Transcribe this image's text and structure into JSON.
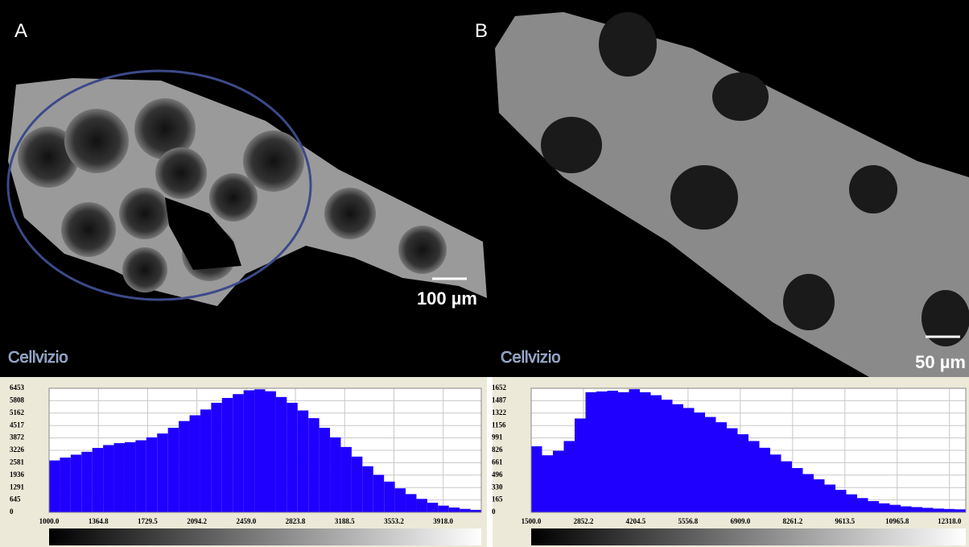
{
  "panels": [
    {
      "label": "A",
      "scale_bar": "100 µm",
      "logo": "Cellvizio"
    },
    {
      "label": "B",
      "scale_bar": "50 µm",
      "logo": "Cellvizio"
    }
  ],
  "chart_data": [
    {
      "type": "histogram",
      "color": "#1f00ff",
      "grid": true,
      "bins": [
        1000,
        1080,
        1160,
        1240,
        1320,
        1400,
        1480,
        1560,
        1640,
        1720,
        1800,
        1880,
        1960,
        2040,
        2120,
        2200,
        2280,
        2360,
        2440,
        2520,
        2600,
        2680,
        2760,
        2840,
        2920,
        3000,
        3080,
        3160,
        3240,
        3320,
        3400,
        3480,
        3560,
        3640,
        3720,
        3800,
        3880,
        3960,
        4040,
        4120,
        4200
      ],
      "values": [
        2700,
        2850,
        3000,
        3150,
        3350,
        3500,
        3600,
        3650,
        3750,
        3900,
        4100,
        4400,
        4750,
        5050,
        5350,
        5700,
        5950,
        6150,
        6350,
        6400,
        6300,
        6000,
        5700,
        5300,
        4900,
        4400,
        3900,
        3400,
        2900,
        2400,
        1950,
        1600,
        1250,
        950,
        700,
        500,
        350,
        250,
        180,
        130
      ],
      "xlim": [
        1000,
        4200
      ],
      "ylim": [
        0,
        6453
      ],
      "xticks": [
        {
          "value": 1000,
          "label": "1000.0"
        },
        {
          "value": 1364.8,
          "label": "1364.8"
        },
        {
          "value": 1729.5,
          "label": "1729.5"
        },
        {
          "value": 2094.2,
          "label": "2094.2"
        },
        {
          "value": 2459,
          "label": "2459.0"
        },
        {
          "value": 2823.8,
          "label": "2823.8"
        },
        {
          "value": 3188.5,
          "label": "3188.5"
        },
        {
          "value": 3553.2,
          "label": "3553.2"
        },
        {
          "value": 3918,
          "label": "3918.0"
        }
      ],
      "yticks": [
        0,
        645,
        1291,
        1936,
        2581,
        3226,
        3872,
        4517,
        5162,
        5808,
        6453
      ]
    },
    {
      "type": "histogram",
      "color": "#1f00ff",
      "grid": true,
      "bins": [
        1500,
        1781,
        2062,
        2343,
        2624,
        2905,
        3186,
        3467,
        3748,
        4029,
        4310,
        4591,
        4872,
        5153,
        5434,
        5715,
        5996,
        6277,
        6558,
        6839,
        7120,
        7401,
        7682,
        7963,
        8244,
        8525,
        8806,
        9087,
        9368,
        9649,
        9930,
        10211,
        10492,
        10773,
        11054,
        11335,
        11616,
        11897,
        12178,
        12459,
        12740
      ],
      "values": [
        880,
        760,
        820,
        950,
        1250,
        1600,
        1610,
        1620,
        1600,
        1640,
        1600,
        1560,
        1500,
        1440,
        1390,
        1330,
        1270,
        1200,
        1120,
        1040,
        950,
        860,
        770,
        680,
        590,
        510,
        440,
        370,
        300,
        240,
        190,
        150,
        120,
        100,
        80,
        70,
        60,
        50,
        45,
        40
      ],
      "xlim": [
        1500,
        12740
      ],
      "ylim": [
        0,
        1652
      ],
      "xticks": [
        {
          "value": 1500,
          "label": "1500.0"
        },
        {
          "value": 2852.2,
          "label": "2852.2"
        },
        {
          "value": 4204.5,
          "label": "4204.5"
        },
        {
          "value": 5556.8,
          "label": "5556.8"
        },
        {
          "value": 6909,
          "label": "6909.0"
        },
        {
          "value": 8261.2,
          "label": "8261.2"
        },
        {
          "value": 9613.5,
          "label": "9613.5"
        },
        {
          "value": 10965.8,
          "label": "10965.8"
        },
        {
          "value": 12318,
          "label": "12318.0"
        }
      ],
      "yticks": [
        0,
        165,
        330,
        496,
        661,
        826,
        991,
        1156,
        1322,
        1487,
        1652
      ]
    }
  ]
}
